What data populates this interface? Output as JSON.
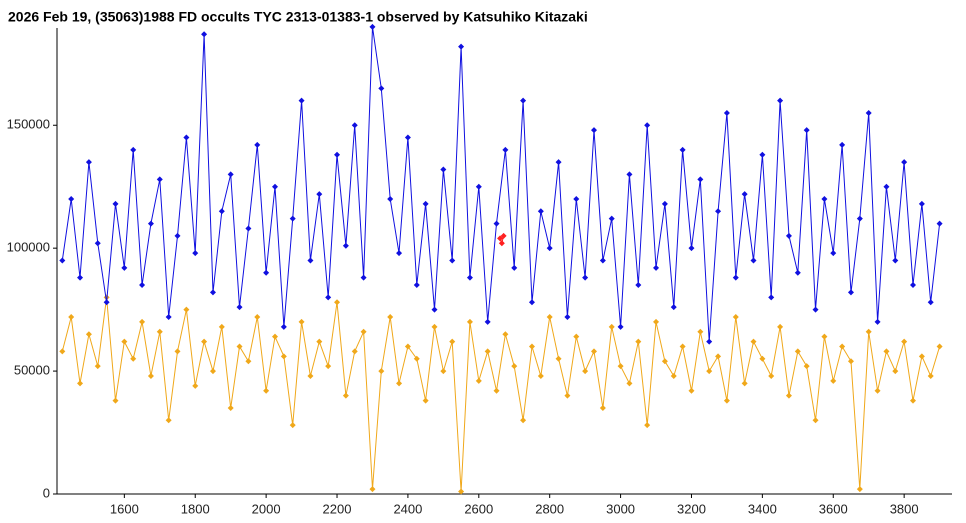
{
  "chart_data": {
    "type": "line",
    "title": "2026 Feb 19, (35063)1988 FD occults TYC 2313-01383-1 observed by Katsuhiko Kitazaki",
    "x": [
      1425,
      1450,
      1475,
      1500,
      1525,
      1550,
      1575,
      1600,
      1625,
      1650,
      1675,
      1700,
      1725,
      1750,
      1775,
      1800,
      1825,
      1850,
      1875,
      1900,
      1925,
      1950,
      1975,
      2000,
      2025,
      2050,
      2075,
      2100,
      2125,
      2150,
      2175,
      2200,
      2225,
      2250,
      2275,
      2300,
      2325,
      2350,
      2375,
      2400,
      2425,
      2450,
      2475,
      2500,
      2525,
      2550,
      2575,
      2600,
      2625,
      2650,
      2675,
      2700,
      2725,
      2750,
      2775,
      2800,
      2825,
      2850,
      2875,
      2900,
      2925,
      2950,
      2975,
      3000,
      3025,
      3050,
      3075,
      3100,
      3125,
      3150,
      3175,
      3200,
      3225,
      3250,
      3275,
      3300,
      3325,
      3350,
      3375,
      3400,
      3425,
      3450,
      3475,
      3500,
      3525,
      3550,
      3575,
      3600,
      3625,
      3650,
      3675,
      3700,
      3725,
      3750,
      3775,
      3800,
      3825,
      3850,
      3875,
      3900
    ],
    "series": [
      {
        "color": "#f0a81a",
        "values": [
          58000,
          72000,
          45000,
          65000,
          52000,
          80000,
          38000,
          62000,
          55000,
          70000,
          48000,
          66000,
          30000,
          58000,
          75000,
          44000,
          62000,
          50000,
          68000,
          35000,
          60000,
          54000,
          72000,
          42000,
          64000,
          56000,
          28000,
          70000,
          48000,
          62000,
          52000,
          78000,
          40000,
          58000,
          66000,
          2000,
          50000,
          72000,
          45000,
          60000,
          55000,
          38000,
          68000,
          50000,
          62000,
          1000,
          70000,
          46000,
          58000,
          42000,
          65000,
          52000,
          30000,
          60000,
          48000,
          72000,
          55000,
          40000,
          64000,
          50000,
          58000,
          35000,
          68000,
          52000,
          45000,
          62000,
          28000,
          70000,
          54000,
          48000,
          60000,
          42000,
          66000,
          50000,
          56000,
          38000,
          72000,
          45000,
          62000,
          55000,
          48000,
          68000,
          40000,
          58000,
          52000,
          30000,
          64000,
          46000,
          60000,
          54000,
          2000,
          66000,
          42000,
          58000,
          50000,
          62000,
          38000,
          56000,
          48000,
          60000
        ]
      },
      {
        "color": "#1010e0",
        "values": [
          95000,
          120000,
          88000,
          135000,
          102000,
          78000,
          118000,
          92000,
          140000,
          85000,
          110000,
          128000,
          72000,
          105000,
          145000,
          98000,
          187000,
          82000,
          115000,
          130000,
          76000,
          108000,
          142000,
          90000,
          125000,
          68000,
          112000,
          160000,
          95000,
          122000,
          80000,
          138000,
          101000,
          150000,
          88000,
          190000,
          165000,
          120000,
          98000,
          145000,
          85000,
          118000,
          75000,
          132000,
          95000,
          182000,
          88000,
          125000,
          70000,
          110000,
          140000,
          92000,
          160000,
          78000,
          115000,
          100000,
          135000,
          72000,
          120000,
          88000,
          148000,
          95000,
          112000,
          68000,
          130000,
          85000,
          150000,
          92000,
          118000,
          76000,
          140000,
          100000,
          128000,
          62000,
          115000,
          155000,
          88000,
          122000,
          95000,
          138000,
          80000,
          160000,
          105000,
          90000,
          148000,
          75000,
          120000,
          98000,
          142000,
          82000,
          112000,
          155000,
          70000,
          125000,
          95000,
          135000,
          85000,
          118000,
          78000,
          110000
        ]
      },
      {
        "color": "#ff2020",
        "x": [
          2660,
          2665,
          2670
        ],
        "values": [
          104000,
          102000,
          105000
        ]
      }
    ],
    "xlim": [
      1410,
      3935
    ],
    "ylim": [
      0,
      192000
    ],
    "xticks": [
      1600,
      1800,
      2000,
      2200,
      2400,
      2600,
      2800,
      3000,
      3200,
      3400,
      3600,
      3800
    ],
    "yticks": [
      0,
      50000,
      100000,
      150000
    ]
  }
}
